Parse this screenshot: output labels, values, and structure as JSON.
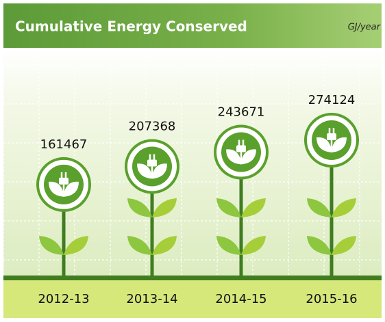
{
  "chart_data": {
    "type": "plant",
    "title": "Cumulative Energy Conserved",
    "unit": "GJ/year",
    "categories": [
      "2012-13",
      "2013-14",
      "2014-15",
      "2015-16"
    ],
    "values": [
      161467,
      207368,
      243671,
      274124
    ],
    "color": "#3f7d20"
  }
}
